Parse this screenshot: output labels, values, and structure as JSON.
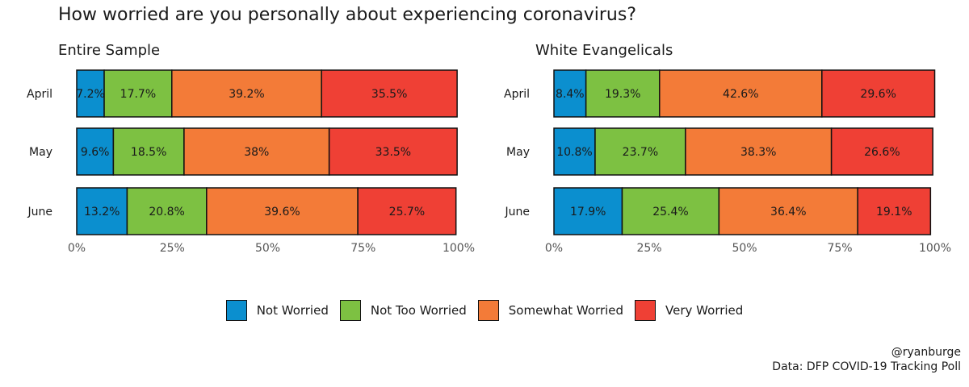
{
  "title": "How worried are you personally about experiencing coronavirus?",
  "legend": [
    {
      "label": "Not Worried",
      "color": "#0b8fcf"
    },
    {
      "label": "Not Too Worried",
      "color": "#7dc142"
    },
    {
      "label": "Somewhat Worried",
      "color": "#f37b38"
    },
    {
      "label": "Very Worried",
      "color": "#ef4035"
    }
  ],
  "caption": {
    "handle": "@ryanburge",
    "source": "Data: DFP COVID-19 Tracking Poll"
  },
  "chart_data": [
    {
      "type": "bar",
      "orientation": "horizontal",
      "stacked": true,
      "subtitle": "Entire Sample",
      "categories": [
        "April",
        "May",
        "June"
      ],
      "series": [
        {
          "name": "Not Worried",
          "values": [
            7.2,
            9.6,
            13.2
          ],
          "labels": [
            "7.2%",
            "9.6%",
            "13.2%"
          ]
        },
        {
          "name": "Not Too Worried",
          "values": [
            17.7,
            18.5,
            20.8
          ],
          "labels": [
            "17.7%",
            "18.5%",
            "20.8%"
          ]
        },
        {
          "name": "Somewhat Worried",
          "values": [
            39.2,
            38,
            39.6
          ],
          "labels": [
            "39.2%",
            "38%",
            "39.6%"
          ]
        },
        {
          "name": "Very Worried",
          "values": [
            35.5,
            33.5,
            25.7
          ],
          "labels": [
            "35.5%",
            "33.5%",
            "25.7%"
          ]
        }
      ],
      "xlim": [
        0,
        100
      ],
      "xticks": [
        "0%",
        "25%",
        "50%",
        "75%",
        "100%"
      ],
      "legend_position": "bottom"
    },
    {
      "type": "bar",
      "orientation": "horizontal",
      "stacked": true,
      "subtitle": "White Evangelicals",
      "categories": [
        "April",
        "May",
        "June"
      ],
      "series": [
        {
          "name": "Not Worried",
          "values": [
            8.4,
            10.8,
            17.9
          ],
          "labels": [
            "8.4%",
            "10.8%",
            "17.9%"
          ]
        },
        {
          "name": "Not Too Worried",
          "values": [
            19.3,
            23.7,
            25.4
          ],
          "labels": [
            "19.3%",
            "23.7%",
            "25.4%"
          ]
        },
        {
          "name": "Somewhat Worried",
          "values": [
            42.6,
            38.3,
            36.4
          ],
          "labels": [
            "42.6%",
            "38.3%",
            "36.4%"
          ]
        },
        {
          "name": "Very Worried",
          "values": [
            29.6,
            26.6,
            19.1
          ],
          "labels": [
            "29.6%",
            "26.6%",
            "19.1%"
          ]
        }
      ],
      "xlim": [
        0,
        100
      ],
      "xticks": [
        "0%",
        "25%",
        "50%",
        "75%",
        "100%"
      ],
      "legend_position": "bottom"
    }
  ]
}
